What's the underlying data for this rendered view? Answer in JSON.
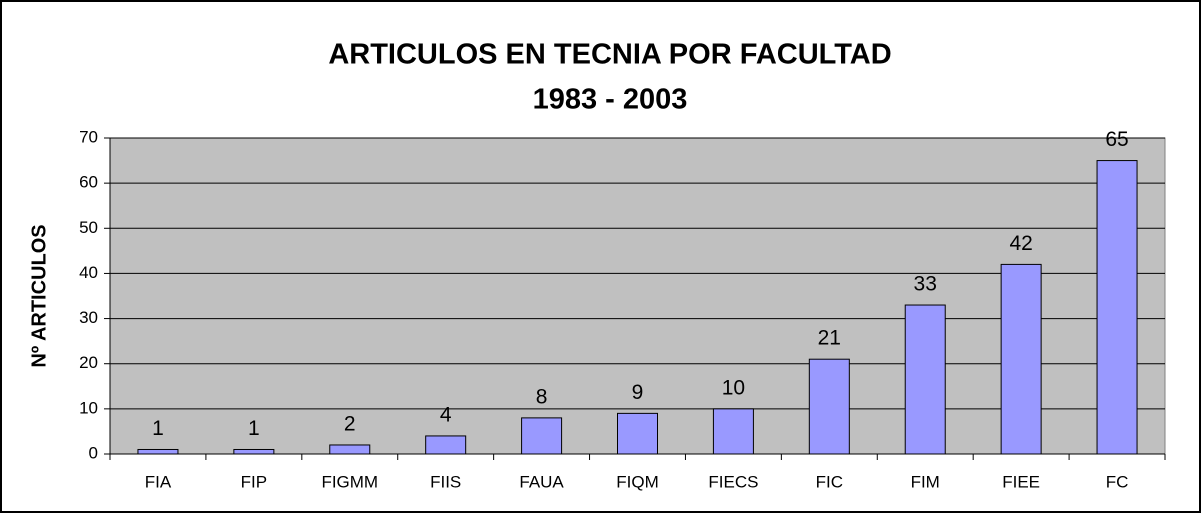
{
  "chart_data": {
    "type": "bar",
    "title": "ARTICULOS EN TECNIA POR FACULTAD",
    "subtitle": "1983 - 2003",
    "y_label": "Nº ARTICULOS",
    "categories": [
      "FIA",
      "FIP",
      "FIGMM",
      "FIIS",
      "FAUA",
      "FIQM",
      "FIECS",
      "FIC",
      "FIM",
      "FIEE",
      "FC"
    ],
    "values": [
      1,
      1,
      2,
      4,
      8,
      9,
      10,
      21,
      33,
      42,
      65
    ],
    "color": "#9999ff",
    "ylim": [
      0,
      70
    ],
    "yticks": [
      0,
      10,
      20,
      30,
      40,
      50,
      60,
      70
    ],
    "grid": true
  }
}
